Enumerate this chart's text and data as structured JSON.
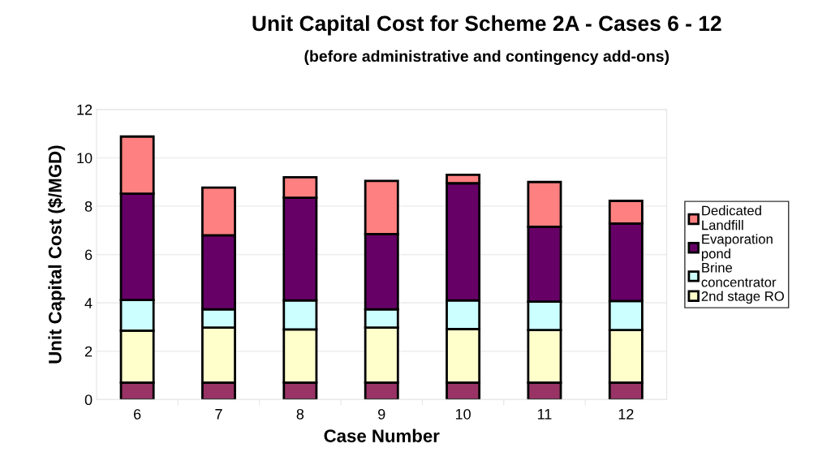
{
  "chart_data": {
    "type": "bar",
    "stacked": true,
    "title": "Unit Capital Cost for Scheme 2A - Cases 6 - 12",
    "subtitle": "(before administrative and contingency add-ons)",
    "xlabel": "Case Number",
    "ylabel": "Unit Capital Cost ($/MGD)",
    "categories": [
      "6",
      "7",
      "8",
      "9",
      "10",
      "11",
      "12"
    ],
    "series": [
      {
        "color": "#993366",
        "values": [
          0.7,
          0.7,
          0.7,
          0.7,
          0.7,
          0.7,
          0.7
        ]
      },
      {
        "name": "2nd stage RO",
        "color": "#ffffcc",
        "values": [
          2.15,
          2.28,
          2.2,
          2.28,
          2.22,
          2.18,
          2.18
        ]
      },
      {
        "name": "Brine concentrator",
        "color": "#ccffff",
        "values": [
          1.27,
          0.75,
          1.2,
          0.75,
          1.18,
          1.17,
          1.2
        ]
      },
      {
        "name": "Evaporation pond",
        "color": "#660066",
        "values": [
          4.4,
          3.07,
          4.25,
          3.12,
          4.85,
          3.1,
          3.2
        ]
      },
      {
        "name": "Dedicated Landfill",
        "color": "#ff8080",
        "values": [
          2.36,
          1.97,
          0.85,
          2.2,
          0.35,
          1.85,
          0.94
        ]
      }
    ],
    "ylim": [
      0,
      12
    ],
    "yticks": [
      0,
      2,
      4,
      6,
      8,
      10,
      12
    ],
    "grid": "y",
    "legend": "right"
  }
}
